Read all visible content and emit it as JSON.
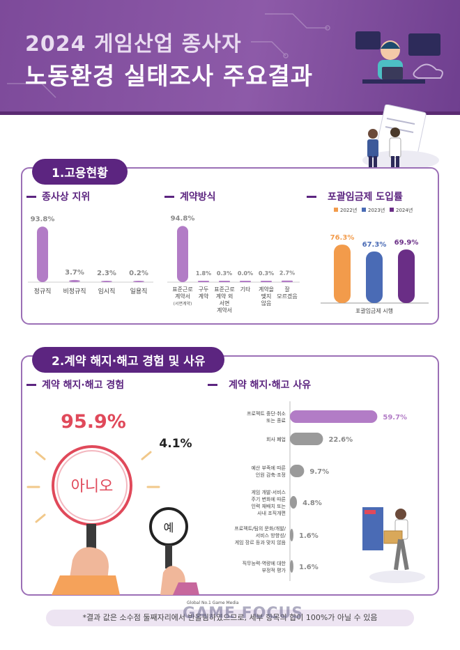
{
  "header": {
    "title_line1": "2024 게임산업 종사자",
    "title_line2": "노동환경 실태조사 주요결과"
  },
  "section1": {
    "label": "1.고용현황",
    "status": {
      "heading": "종사상 지위",
      "chart_data": {
        "type": "bar",
        "categories": [
          "정규직",
          "비정규직",
          "임시직",
          "일용직"
        ],
        "values": [
          93.8,
          3.7,
          2.3,
          0.2
        ],
        "value_labels": [
          "93.8%",
          "3.7%",
          "2.3%",
          "0.2%"
        ],
        "color": "#b27cc6"
      }
    },
    "contract": {
      "heading": "계약방식",
      "chart_data": {
        "type": "bar",
        "categories": [
          [
            "표준근로",
            "계약서"
          ],
          [
            "구두",
            "계약"
          ],
          [
            "표준근로",
            "계약 외",
            "서면",
            "계약서"
          ],
          [
            "기타"
          ],
          [
            "계약을",
            "맺지",
            "않음"
          ],
          [
            "잘",
            "모르겠음"
          ]
        ],
        "sub_note": "(서면계약)",
        "values": [
          94.8,
          1.8,
          0.3,
          0.0,
          0.3,
          2.7
        ],
        "value_labels": [
          "94.8%",
          "1.8%",
          "0.3%",
          "0.0%",
          "0.3%",
          "2.7%"
        ],
        "color": "#b27cc6"
      }
    },
    "inclusive": {
      "heading": "포괄임금제 도입률",
      "chart_data": {
        "type": "bar",
        "series": [
          {
            "name": "2022년",
            "values": [
              76.3
            ],
            "color": "#f29b4b"
          },
          {
            "name": "2023년",
            "values": [
              67.3
            ],
            "color": "#4a6bb5"
          },
          {
            "name": "2024년",
            "values": [
              69.9
            ],
            "color": "#6a2e86"
          }
        ],
        "value_labels": [
          "76.3%",
          "67.3%",
          "69.9%"
        ],
        "xlabel": "포괄임금제 시행",
        "legend": "top"
      }
    }
  },
  "section2": {
    "label": "2.계약 해지·해고 경험 및 사유",
    "experience": {
      "heading": "계약 해지·해고 경험",
      "no_label": "아니오",
      "no_value": "95.9%",
      "yes_label": "예",
      "yes_value": "4.1%"
    },
    "reasons": {
      "heading": "계약 해지·해고 사유",
      "chart_data": {
        "type": "bar",
        "orientation": "horizontal",
        "categories": [
          [
            "프로젝트 중단·취소",
            "또는 종료"
          ],
          [
            "회사 폐업"
          ],
          [
            "예산 부족에 따른",
            "인원 감축·조정"
          ],
          [
            "게임 개발·서비스",
            "주기 변화에 따른",
            "인력 재배치 또는",
            "사내 조직개편"
          ],
          [
            "프로젝트/팀의 문화/개발/",
            "서비스 방향성/",
            "게임 장르 등과 맞지 않음"
          ],
          [
            "직무능력·역량에 대한",
            "부정적 평가"
          ]
        ],
        "values": [
          59.7,
          22.6,
          9.7,
          4.8,
          1.6,
          1.6
        ],
        "value_labels": [
          "59.7%",
          "22.6%",
          "9.7%",
          "4.8%",
          "1.6%",
          "1.6%"
        ],
        "colors": [
          "#b27cc6",
          "#9a9a9a",
          "#9a9a9a",
          "#9a9a9a",
          "#9a9a9a",
          "#9a9a9a"
        ]
      }
    }
  },
  "footer": {
    "note": "*결과 값은 소수점 둘째자리에서 반올림하였으므로, 세부 항목의 합이 100%가 아닐 수 있음",
    "brand_tag": "Global No.1 Game Media",
    "brand_name": "GAME FOCUS"
  }
}
